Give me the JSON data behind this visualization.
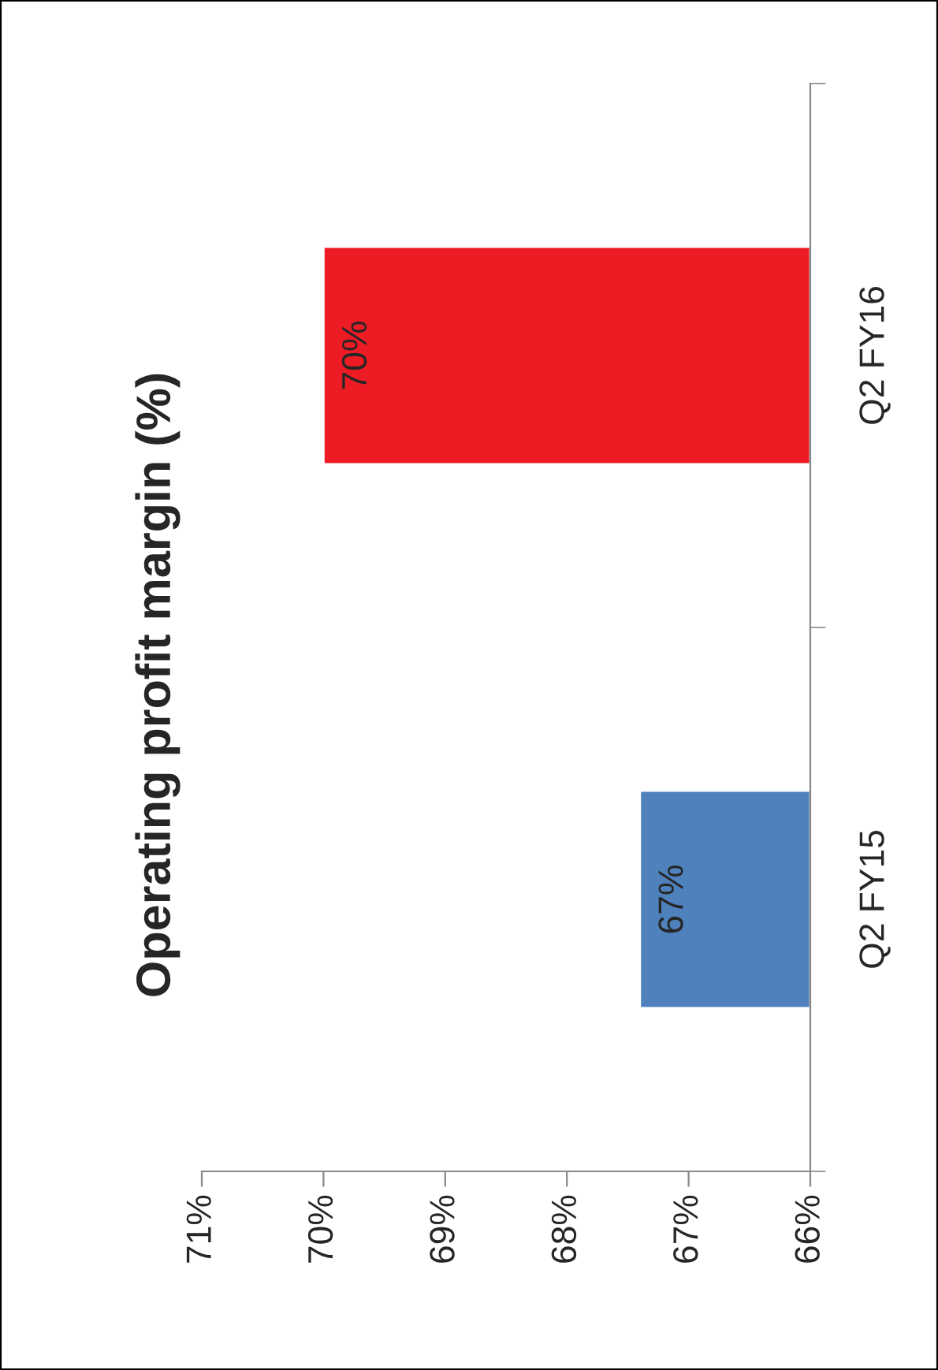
{
  "chart_data": {
    "type": "bar",
    "title": "Operating profit margin (%)",
    "orientation": "horizontal",
    "categories": [
      "Q2 FY16",
      "Q2 FY15"
    ],
    "values": [
      70.0,
      67.4
    ],
    "value_labels": [
      "70%",
      "67%"
    ],
    "colors": [
      "#ed1c24",
      "#4f81bd"
    ],
    "xlim": [
      71,
      66
    ],
    "xticks": [
      {
        "value": 71,
        "label": "71%"
      },
      {
        "value": 70,
        "label": "70%"
      },
      {
        "value": 69,
        "label": "69%"
      },
      {
        "value": 68,
        "label": "68%"
      },
      {
        "value": 67,
        "label": "67%"
      },
      {
        "value": 66,
        "label": "66%"
      }
    ],
    "grid": false,
    "legend": false
  }
}
